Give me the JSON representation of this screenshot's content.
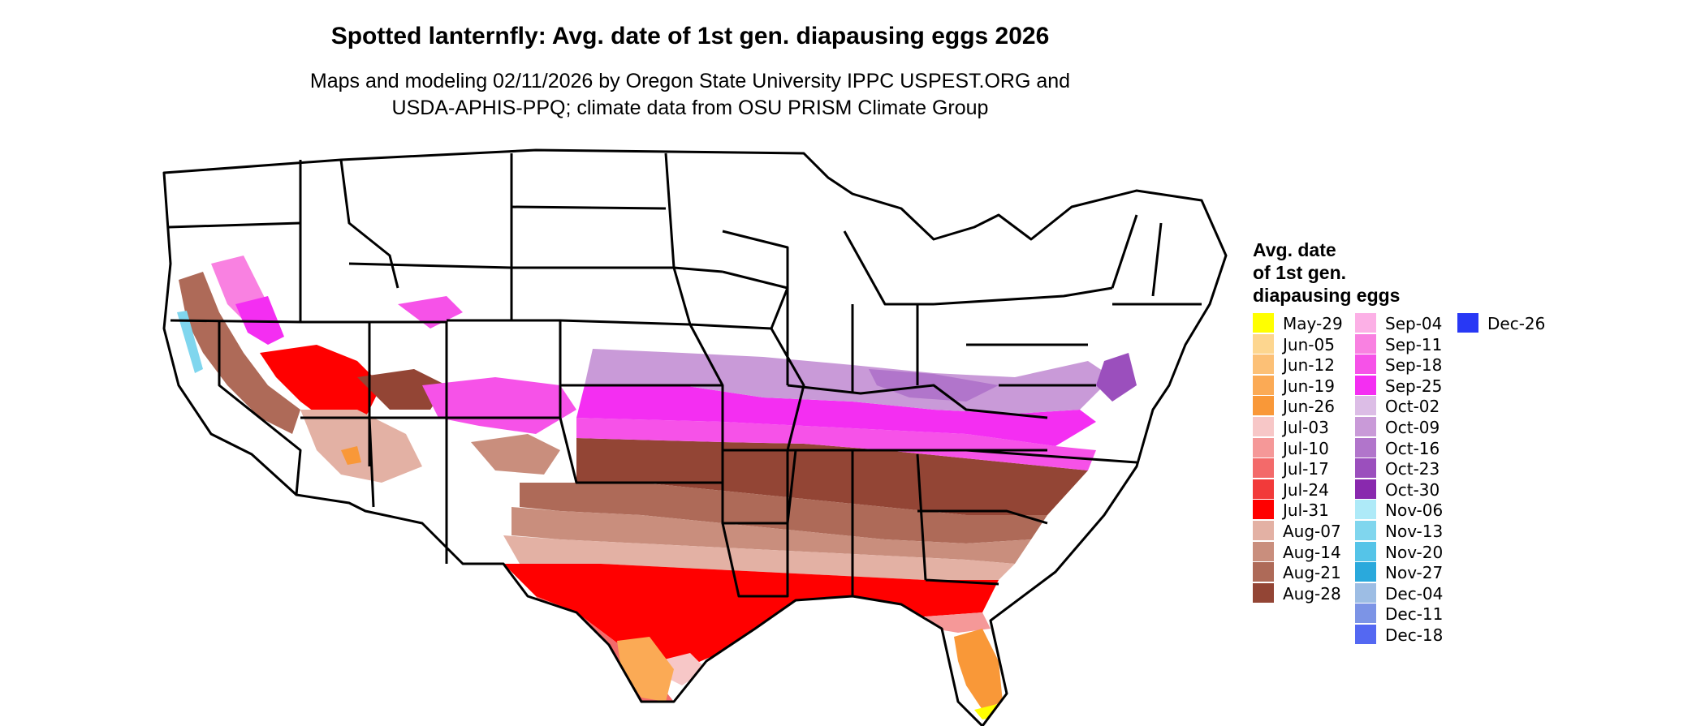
{
  "title": "Spotted lanternfly: Avg. date of 1st gen. diapausing eggs 2026",
  "subtitle_lines": [
    "Maps and modeling 02/11/2026 by Oregon State University IPPC USPEST.ORG and",
    "USDA-APHIS-PPQ; climate data from OSU PRISM Climate Group"
  ],
  "legend": {
    "title_lines": [
      "Avg. date",
      "of 1st gen.",
      "diapausing eggs"
    ],
    "items": [
      {
        "label": "May-29",
        "color": "#ffff00"
      },
      {
        "label": "Jun-05",
        "color": "#fdd68f"
      },
      {
        "label": "Jun-12",
        "color": "#fcc076"
      },
      {
        "label": "Jun-19",
        "color": "#fbaa55"
      },
      {
        "label": "Jun-26",
        "color": "#f99838"
      },
      {
        "label": "Jul-03",
        "color": "#f7c7c7"
      },
      {
        "label": "Jul-10",
        "color": "#f59898"
      },
      {
        "label": "Jul-17",
        "color": "#f36a6a"
      },
      {
        "label": "Jul-24",
        "color": "#f23a3a"
      },
      {
        "label": "Jul-31",
        "color": "#ff0000"
      },
      {
        "label": "Aug-07",
        "color": "#e3b1a4"
      },
      {
        "label": "Aug-14",
        "color": "#c98e7d"
      },
      {
        "label": "Aug-21",
        "color": "#ae6a58"
      },
      {
        "label": "Aug-28",
        "color": "#934535"
      },
      {
        "label": "Sep-04",
        "color": "#fcb0e6"
      },
      {
        "label": "Sep-11",
        "color": "#f981e1"
      },
      {
        "label": "Sep-18",
        "color": "#f652e8"
      },
      {
        "label": "Sep-25",
        "color": "#f42ef2"
      },
      {
        "label": "Oct-02",
        "color": "#dcbde6"
      },
      {
        "label": "Oct-09",
        "color": "#c99ad8"
      },
      {
        "label": "Oct-16",
        "color": "#b175cb"
      },
      {
        "label": "Oct-23",
        "color": "#9b4fbd"
      },
      {
        "label": "Oct-30",
        "color": "#8929ae"
      },
      {
        "label": "Nov-06",
        "color": "#aeeaf8"
      },
      {
        "label": "Nov-13",
        "color": "#80d6ee"
      },
      {
        "label": "Nov-20",
        "color": "#55c4e8"
      },
      {
        "label": "Nov-27",
        "color": "#2aa9dc"
      },
      {
        "label": "Dec-04",
        "color": "#9dbde4"
      },
      {
        "label": "Dec-11",
        "color": "#7c94e6"
      },
      {
        "label": "Dec-18",
        "color": "#5468f2"
      },
      {
        "label": "Dec-26",
        "color": "#2838f5"
      }
    ]
  }
}
